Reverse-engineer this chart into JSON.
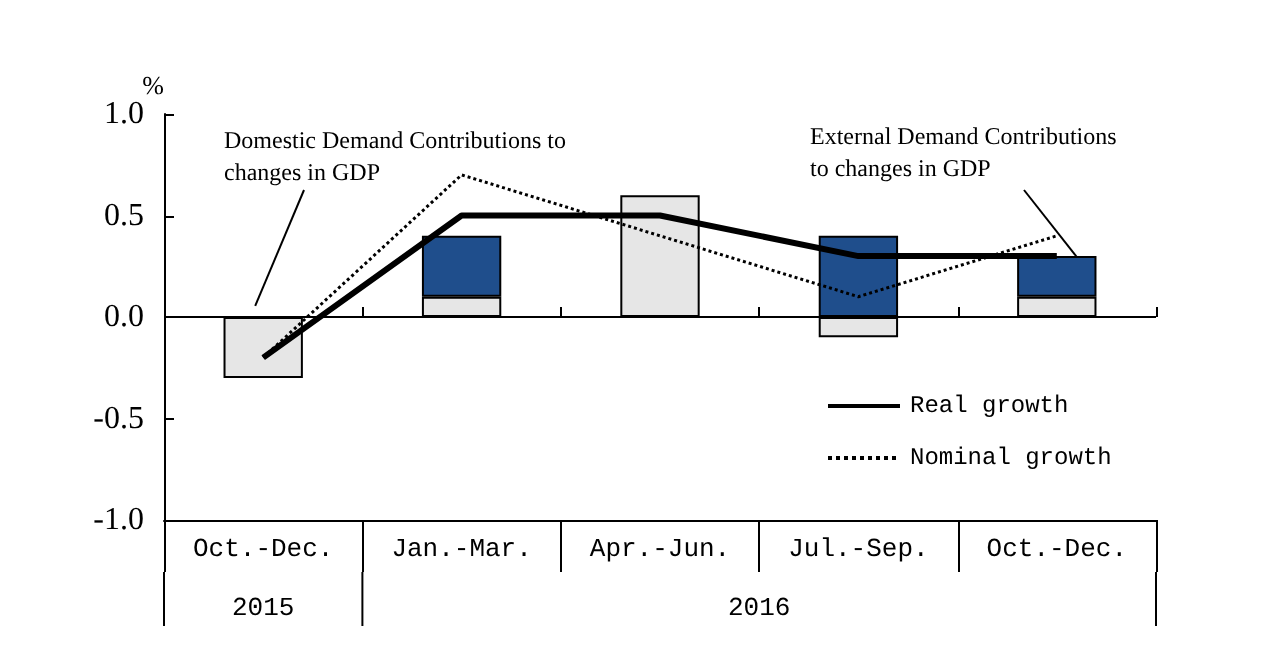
{
  "chart_data": {
    "type": "bar",
    "stacked": true,
    "ylabel": "%",
    "categories": [
      "Oct.-Dec.",
      "Jan.-Mar.",
      "Apr.-Jun.",
      "Jul.-Sep.",
      "Oct.-Dec."
    ],
    "series": [
      {
        "color": "#e6e6e6",
        "values": [
          -0.3,
          0.1,
          0.6,
          -0.1,
          0.1
        ]
      },
      {
        "color": "#1f4e8c",
        "values": [
          null,
          0.3,
          null,
          0.4,
          0.2
        ]
      },
      {
        "type": "line",
        "name": "Real growth",
        "color": "#000000",
        "line_style": "solid",
        "values": [
          -0.2,
          0.5,
          0.5,
          0.3,
          0.3
        ]
      },
      {
        "type": "line",
        "name": "Nominal growth",
        "color": "#000000",
        "line_style": "dotted",
        "values": [
          -0.2,
          0.7,
          0.4,
          0.1,
          0.4
        ]
      }
    ],
    "ylim": [
      -1.0,
      1.0
    ],
    "yticks": [
      {
        "value": -1.0,
        "label": "-1.0"
      },
      {
        "value": -0.5,
        "label": "-0.5"
      },
      {
        "value": 0,
        "label": "0.0"
      },
      {
        "value": 0.5,
        "label": "0.5"
      },
      {
        "value": 1.0,
        "label": "1.0"
      }
    ],
    "ref_lines": [
      {
        "axis": "y",
        "value": 0
      }
    ],
    "annotations": [
      "Domestic Demand Contributions to\nchanges in GDP",
      "External Demand Contributions\nto changes in GDP",
      "2015",
      "2016"
    ],
    "grid": false,
    "legend": "bottom right",
    "marker": "none"
  }
}
